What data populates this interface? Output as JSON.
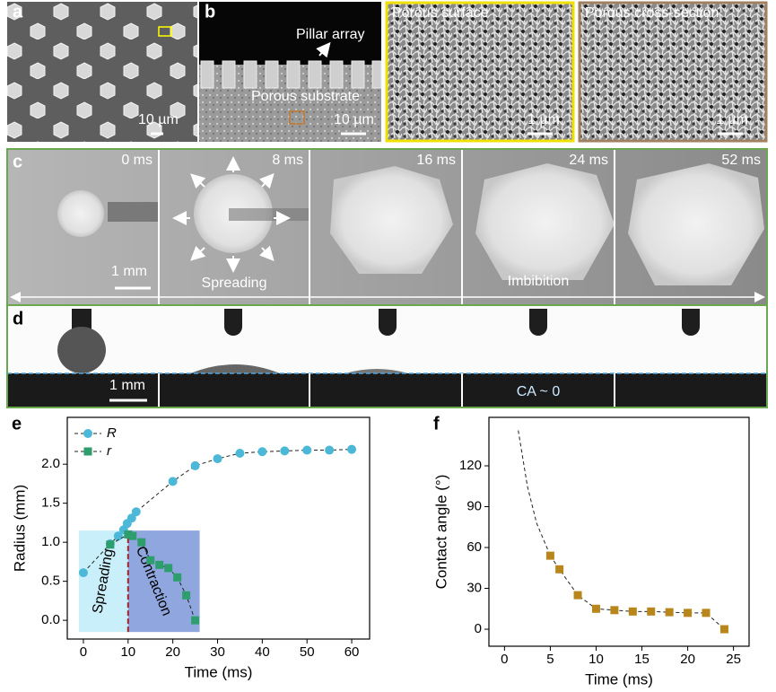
{
  "panels": {
    "labels": [
      "a",
      "b",
      "c",
      "d"
    ],
    "a": {
      "scale": "10 µm"
    },
    "b": {
      "pillar": "Pillar array",
      "substrate": "Porous substrate",
      "scale": "10 µm"
    },
    "surface": {
      "title": "Porous surface",
      "scale": "1 µm"
    },
    "cross": {
      "title": "Porous cross-section",
      "scale": "1 µm"
    },
    "c": {
      "times": [
        "0 ms",
        "8 ms",
        "16 ms",
        "24 ms",
        "52 ms"
      ],
      "scale": "1 mm",
      "spreading": "Spreading",
      "imbibition": "Imbibition"
    },
    "d": {
      "scale": "1 mm",
      "ca": "CA ~ 0"
    }
  },
  "chart_data": [
    {
      "type": "line",
      "label": "e",
      "xlabel": "Time (ms)",
      "ylabel": "Radius (mm)",
      "xlim": [
        -3.6,
        64
      ],
      "ylim": [
        -0.24,
        2.6
      ],
      "xticks": [
        0,
        10,
        20,
        30,
        40,
        50,
        60
      ],
      "yticks": [
        {
          "value": 0,
          "label": "0.0"
        },
        {
          "value": 0.5,
          "label": "0.5"
        },
        {
          "value": 1,
          "label": "1.0"
        },
        {
          "value": 1.5,
          "label": "1.5"
        },
        {
          "value": 2,
          "label": "2.0"
        }
      ],
      "series": [
        {
          "name": "R",
          "color": "#4bb8d8",
          "marker": "circle",
          "x": [
            0,
            6,
            7.8,
            9,
            9.8,
            10.8,
            11.8,
            20,
            25,
            30,
            35,
            40,
            45,
            50,
            55,
            60
          ],
          "values": [
            0.61,
            0.98,
            1.08,
            1.16,
            1.24,
            1.31,
            1.39,
            1.78,
            1.98,
            2.07,
            2.14,
            2.16,
            2.17,
            2.18,
            2.18,
            2.19
          ]
        },
        {
          "name": "r",
          "color": "#2e9e6e",
          "marker": "square",
          "x": [
            6,
            10,
            11,
            13,
            15,
            17,
            19,
            21,
            23,
            25
          ],
          "values": [
            0.97,
            1.1,
            1.08,
            1.0,
            0.77,
            0.71,
            0.67,
            0.55,
            0.32,
            0.0
          ]
        }
      ],
      "regions": [
        {
          "label": "Spreading",
          "x": [
            -1,
            10
          ],
          "y": [
            -0.15,
            1.15
          ],
          "color": "#c9f0fa"
        },
        {
          "label": "Contraction",
          "x": [
            10,
            26
          ],
          "y": [
            -0.15,
            1.15
          ],
          "color": "#8fa6de"
        }
      ],
      "divider": {
        "x": 10,
        "color": "#a0262a"
      }
    },
    {
      "type": "scatter",
      "label": "f",
      "xlabel": "Time (ms)",
      "ylabel": "Contact angle (°)",
      "xlim": [
        -1.7,
        26.7
      ],
      "ylim": [
        -12.5,
        155.6
      ],
      "xticks": [
        0,
        5,
        10,
        15,
        20,
        25
      ],
      "yticks": [
        0,
        30,
        60,
        90,
        120
      ],
      "series": [
        {
          "color": "#b8861b",
          "marker": "square",
          "x": [
            5,
            6,
            8,
            10,
            12,
            14,
            16,
            18,
            20,
            22,
            24
          ],
          "values": [
            54,
            44,
            25,
            15,
            14,
            13,
            13,
            12.5,
            12,
            12,
            0
          ]
        }
      ],
      "fit": {
        "x": [
          1.5,
          2.5,
          3.5,
          5
        ],
        "values": [
          146,
          105,
          78,
          54
        ]
      }
    }
  ]
}
